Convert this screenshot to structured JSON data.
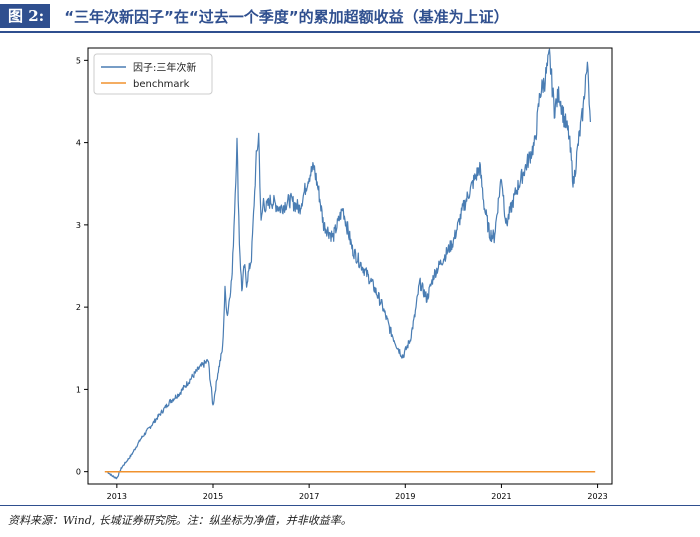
{
  "figure": {
    "label": "图 2:",
    "title": "“三年次新因子”在“过去一个季度”的累加超额收益（基准为上证）",
    "source": "资料来源：Wind, 长城证券研究院。注：纵坐标为净值，并非收益率。"
  },
  "chart_data": {
    "type": "line",
    "x_ticks": [
      "2013",
      "2015",
      "2017",
      "2019",
      "2021",
      "2023"
    ],
    "y_ticks": [
      "0",
      "1",
      "2",
      "3",
      "4",
      "5"
    ],
    "xlim": [
      2012.4,
      2023.3
    ],
    "ylim": [
      -0.15,
      5.15
    ],
    "grid": false,
    "legend_position": "top-left",
    "series": [
      {
        "name": "因子:三年次新",
        "color": "#4a7db3",
        "x": [
          2012.8,
          2012.9,
          2013.0,
          2013.1,
          2013.3,
          2013.5,
          2013.7,
          2013.9,
          2014.1,
          2014.3,
          2014.5,
          2014.7,
          2014.9,
          2015.0,
          2015.1,
          2015.2,
          2015.25,
          2015.3,
          2015.4,
          2015.45,
          2015.5,
          2015.55,
          2015.6,
          2015.65,
          2015.7,
          2015.8,
          2015.9,
          2015.95,
          2016.0,
          2016.05,
          2016.1,
          2016.2,
          2016.4,
          2016.6,
          2016.8,
          2017.0,
          2017.1,
          2017.2,
          2017.3,
          2017.5,
          2017.7,
          2017.9,
          2018.1,
          2018.3,
          2018.5,
          2018.7,
          2018.85,
          2018.95,
          2019.1,
          2019.2,
          2019.3,
          2019.45,
          2019.6,
          2019.8,
          2020.0,
          2020.2,
          2020.4,
          2020.55,
          2020.65,
          2020.75,
          2020.85,
          2021.0,
          2021.1,
          2021.3,
          2021.5,
          2021.7,
          2021.8,
          2021.9,
          2022.0,
          2022.1,
          2022.2,
          2022.3,
          2022.4,
          2022.5,
          2022.6,
          2022.7,
          2022.75,
          2022.8,
          2022.85
        ],
        "values": [
          0.0,
          -0.05,
          -0.08,
          0.05,
          0.2,
          0.4,
          0.55,
          0.7,
          0.85,
          0.95,
          1.1,
          1.25,
          1.35,
          0.8,
          1.2,
          1.5,
          2.2,
          1.9,
          2.4,
          3.2,
          4.0,
          2.8,
          2.2,
          2.5,
          2.3,
          2.6,
          3.8,
          4.1,
          3.0,
          3.3,
          3.2,
          3.3,
          3.2,
          3.3,
          3.2,
          3.6,
          3.7,
          3.4,
          3.0,
          2.85,
          3.2,
          2.7,
          2.5,
          2.3,
          2.05,
          1.7,
          1.5,
          1.4,
          1.6,
          1.9,
          2.3,
          2.1,
          2.4,
          2.6,
          2.8,
          3.2,
          3.5,
          3.7,
          3.2,
          2.9,
          2.85,
          3.6,
          3.0,
          3.4,
          3.7,
          4.0,
          4.6,
          4.75,
          5.05,
          4.4,
          4.6,
          4.3,
          4.1,
          3.5,
          4.0,
          4.4,
          4.8,
          4.9,
          4.25
        ]
      },
      {
        "name": "benchmark",
        "color": "#f0922e",
        "x": [
          2012.75,
          2022.95
        ],
        "values": [
          0.0,
          0.0
        ]
      }
    ]
  }
}
